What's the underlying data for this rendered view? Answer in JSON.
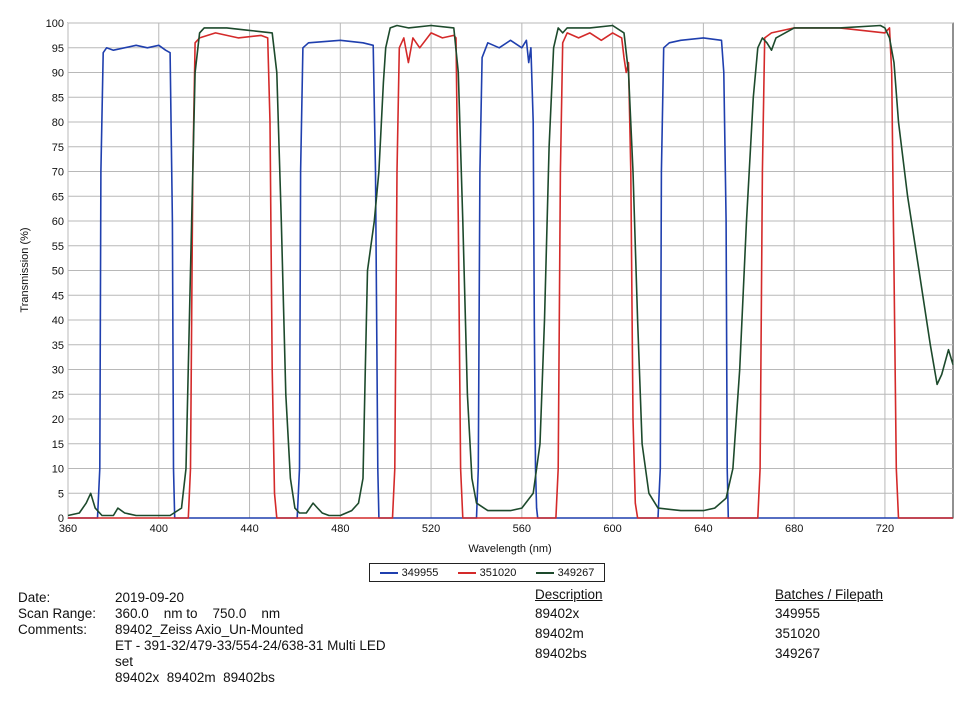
{
  "chart_data": {
    "type": "line",
    "xlabel": "Wavelength (nm)",
    "ylabel": "Transmission (%)",
    "xlim": [
      360,
      750
    ],
    "ylim": [
      0,
      100
    ],
    "xticks": [
      360,
      400,
      440,
      480,
      520,
      560,
      600,
      640,
      680,
      720
    ],
    "yticks": [
      0,
      5,
      10,
      15,
      20,
      25,
      30,
      35,
      40,
      45,
      50,
      55,
      60,
      65,
      70,
      75,
      80,
      85,
      90,
      95,
      100
    ],
    "grid": true,
    "legend_placement": "bottom-center",
    "series": [
      {
        "name": "349955",
        "color": "#1f3fae",
        "x": [
          360,
          373,
          374,
          374.5,
          375.5,
          377,
          380,
          390,
          395,
          400,
          403,
          405,
          406,
          406.5,
          407,
          450,
          461,
          462,
          462.5,
          463.5,
          466,
          480,
          490,
          494.5,
          495.5,
          496.5,
          497,
          540,
          540.8,
          541.5,
          542.5,
          545,
          550,
          555,
          560,
          562,
          563,
          564,
          565,
          565.5,
          566,
          566.5,
          567,
          620,
          621,
          621.5,
          622.5,
          625,
          630,
          640,
          648,
          649,
          650,
          650.5,
          651,
          750
        ],
        "y": [
          0,
          0,
          10,
          70,
          94,
          95,
          94.5,
          95.5,
          95,
          95.5,
          94.5,
          94,
          60,
          10,
          0,
          0,
          0,
          10,
          70,
          95,
          96,
          96.5,
          96,
          95.5,
          70,
          10,
          0,
          0,
          10,
          70,
          93,
          96,
          95,
          96.5,
          95,
          96.5,
          92,
          95,
          80,
          40,
          10,
          2,
          0,
          0,
          10,
          70,
          95,
          96,
          96.5,
          97,
          96.5,
          90,
          60,
          10,
          0,
          0
        ]
      },
      {
        "name": "351020",
        "color": "#d42a2a",
        "x": [
          360,
          413,
          414,
          415,
          416,
          418,
          425,
          435,
          445,
          448,
          449,
          450,
          451,
          452,
          503,
          504,
          505,
          506,
          508,
          510,
          512,
          515,
          520,
          525,
          530,
          531,
          532,
          533,
          534,
          575,
          576,
          577,
          578,
          580,
          585,
          590,
          595,
          600,
          604,
          605,
          606,
          607,
          608,
          609,
          610,
          611,
          664,
          665,
          666,
          667,
          670,
          680,
          700,
          720,
          722,
          723,
          724,
          725,
          726,
          750
        ],
        "y": [
          0,
          0,
          10,
          70,
          96,
          97,
          98,
          97,
          97.5,
          97,
          80,
          30,
          5,
          0,
          0,
          10,
          70,
          95,
          97,
          92,
          97,
          95,
          98,
          97,
          97.5,
          97,
          60,
          10,
          0,
          0,
          10,
          70,
          96,
          98,
          97,
          98,
          96.5,
          98,
          97,
          93,
          90,
          92,
          70,
          20,
          3,
          0,
          0,
          10,
          70,
          97,
          98,
          99,
          99,
          98,
          99,
          90,
          50,
          10,
          0,
          0
        ]
      },
      {
        "name": "349267",
        "color": "#1d4a2c",
        "x": [
          360,
          365,
          368,
          370,
          372,
          375,
          380,
          382,
          385,
          390,
          395,
          400,
          405,
          410,
          412,
          414,
          416,
          418,
          420,
          430,
          440,
          450,
          452,
          454,
          456,
          458,
          460,
          462,
          465,
          468,
          470,
          472,
          475,
          480,
          485,
          488,
          490,
          491,
          492,
          495,
          497,
          499,
          500,
          502,
          505,
          510,
          520,
          530,
          532,
          534,
          536,
          538,
          540,
          545,
          550,
          555,
          560,
          565,
          568,
          570,
          572,
          574,
          576,
          578,
          580,
          590,
          600,
          605,
          607,
          609,
          611,
          613,
          616,
          620,
          630,
          640,
          645,
          650,
          653,
          656,
          659,
          662,
          664,
          666,
          668,
          670,
          672,
          680,
          700,
          718,
          720,
          722,
          724,
          726,
          730,
          735,
          740,
          743,
          745,
          748,
          750
        ],
        "y": [
          0.5,
          1,
          3,
          5,
          2,
          0.5,
          0.5,
          2,
          1,
          0.5,
          0.5,
          0.5,
          0.5,
          2,
          10,
          50,
          90,
          98,
          99,
          99,
          98.5,
          98,
          90,
          60,
          25,
          8,
          2,
          1,
          1,
          3,
          2,
          1,
          0.5,
          0.5,
          1.5,
          3,
          8,
          30,
          50,
          60,
          70,
          88,
          95,
          99,
          99.5,
          99,
          99.5,
          99,
          90,
          60,
          25,
          8,
          3,
          1.5,
          1.5,
          1.5,
          2,
          5,
          15,
          40,
          75,
          95,
          99,
          98,
          99,
          99,
          99.5,
          98,
          90,
          70,
          40,
          15,
          5,
          2,
          1.5,
          1.5,
          2,
          4,
          10,
          30,
          60,
          85,
          95,
          97,
          96,
          94.5,
          97,
          99,
          99,
          99.5,
          99,
          97,
          92,
          80,
          65,
          50,
          35,
          27,
          29,
          34,
          31
        ]
      }
    ]
  },
  "info": {
    "date_label": "Date:",
    "date_value": "2019-09-20",
    "scan_label": "Scan Range:",
    "scan_value": "360.0    nm to    750.0    nm",
    "comments_label": "Comments:",
    "comments_lines": [
      "89402_Zeiss Axio_Un-Mounted",
      "ET - 391-32/479-33/554-24/638-31 Multi LED",
      "set",
      "89402x  89402m  89402bs"
    ]
  },
  "description_header": "Description",
  "descriptions": [
    "89402x",
    "89402m",
    "89402bs"
  ],
  "batches_header": "Batches / Filepath",
  "batches": [
    "349955",
    "351020",
    "349267"
  ]
}
